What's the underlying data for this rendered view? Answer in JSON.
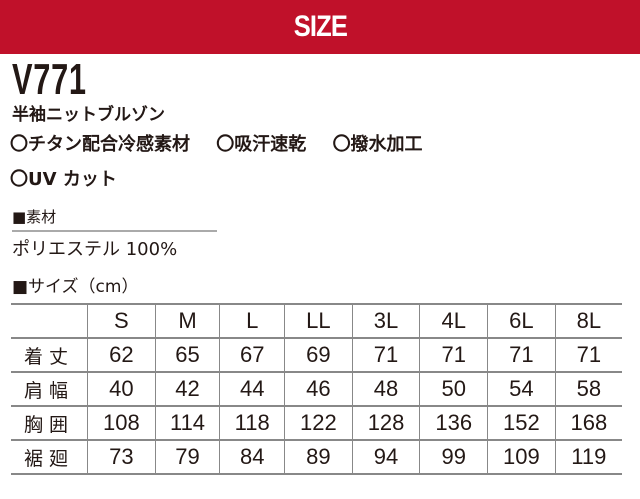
{
  "header": {
    "title": "SIZE",
    "color": "#c0112a"
  },
  "product": {
    "model": "V771",
    "name": "半袖ニットブルゾン",
    "features": [
      "〇チタン配合冷感素材",
      "〇吸汗速乾",
      "〇撥水加工",
      "〇UV カット"
    ]
  },
  "material": {
    "label": "■素材",
    "value": "ポリエステル 100%"
  },
  "size_table": {
    "label": "■サイズ（cm）",
    "columns": [
      "",
      "S",
      "M",
      "L",
      "LL",
      "3L",
      "4L",
      "6L",
      "8L"
    ],
    "rows": [
      {
        "name": "着丈",
        "values": [
          "62",
          "65",
          "67",
          "69",
          "71",
          "71",
          "71",
          "71"
        ]
      },
      {
        "name": "肩幅",
        "values": [
          "40",
          "42",
          "44",
          "46",
          "48",
          "50",
          "54",
          "58"
        ]
      },
      {
        "name": "胸囲",
        "values": [
          "108",
          "114",
          "118",
          "122",
          "128",
          "136",
          "152",
          "168"
        ]
      },
      {
        "name": "裾廻",
        "values": [
          "73",
          "79",
          "84",
          "89",
          "94",
          "99",
          "109",
          "119"
        ]
      }
    ]
  }
}
